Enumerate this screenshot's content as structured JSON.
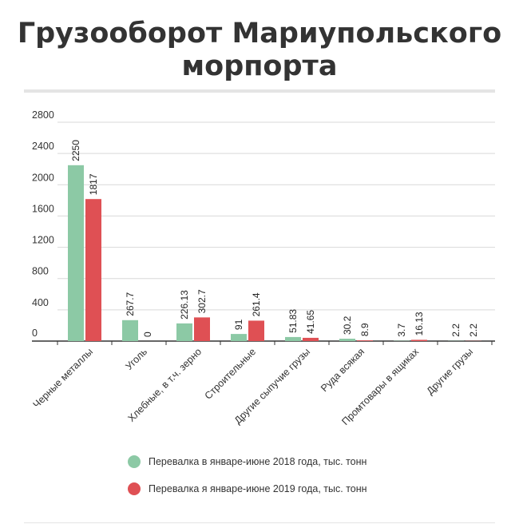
{
  "title_line1": "Грузооборот Мариупольского",
  "title_line2": "морпорта",
  "chart_data": {
    "type": "bar",
    "categories": [
      "Черные металлы",
      "Уголь",
      "Хлебные, в т.ч. зерно",
      "Строительные",
      "Другие сыпучие грузы",
      "Руда всякая",
      "Промтовары в ящиках",
      "Другие грузы"
    ],
    "series": [
      {
        "name": "Перевалка в январе-июне 2018 года, тыс. тонн",
        "color": "#8cc9a5",
        "values": [
          2250,
          267.7,
          226.13,
          91,
          51.83,
          30.2,
          3.7,
          2.2
        ],
        "labels": [
          "2250",
          "267.7",
          "226.13",
          "91",
          "51.83",
          "30.2",
          "3.7",
          "2.2"
        ]
      },
      {
        "name": "Перевалка я январе-июне 2019 года, тыс. тонн",
        "color": "#df5054",
        "values": [
          1817,
          0,
          302.7,
          261.4,
          41.65,
          8.9,
          16.13,
          2.2
        ],
        "labels": [
          "1817",
          "0",
          "302.7",
          "261.4",
          "41.65",
          "8.9",
          "16.13",
          "2.2"
        ]
      }
    ],
    "ylim": [
      0,
      2800
    ],
    "yticks": [
      0,
      400,
      800,
      1200,
      1600,
      2000,
      2400,
      2800
    ],
    "grid": true,
    "legend": "bottom"
  }
}
